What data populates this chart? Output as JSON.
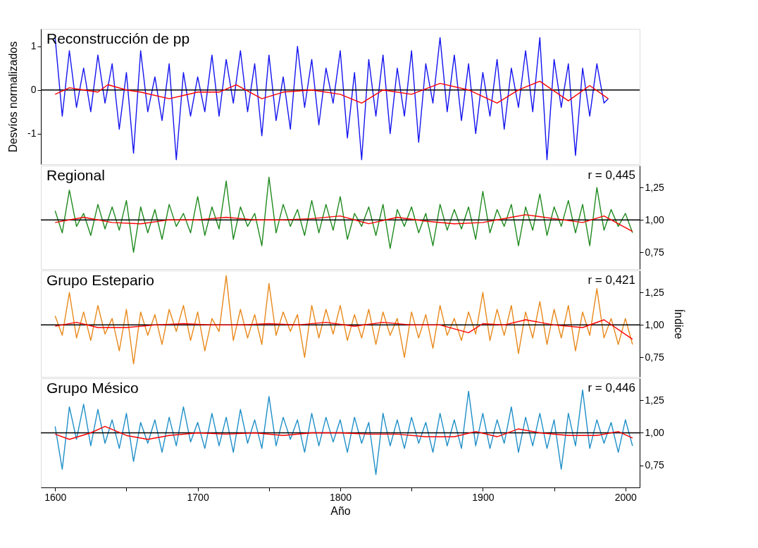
{
  "chart_data": [
    {
      "type": "line",
      "title": "Reconstrucción de pp",
      "ylabel": "Desvíos normalizados",
      "xlim": [
        1590,
        2010
      ],
      "ylim": [
        -1.7,
        1.4
      ],
      "yticks": [
        -1,
        0,
        1
      ],
      "grid": false,
      "tick_labels": "y",
      "ref_lines": [
        {
          "axis": "y",
          "value": 0,
          "color": "#000000"
        }
      ],
      "series": [
        {
          "color": "#1414f0",
          "x": [
            1600,
            1605,
            1610,
            1615,
            1620,
            1625,
            1630,
            1635,
            1640,
            1645,
            1650,
            1655,
            1660,
            1665,
            1670,
            1675,
            1680,
            1685,
            1690,
            1695,
            1700,
            1705,
            1710,
            1715,
            1720,
            1725,
            1730,
            1735,
            1740,
            1745,
            1750,
            1755,
            1760,
            1765,
            1770,
            1775,
            1780,
            1785,
            1790,
            1795,
            1800,
            1805,
            1810,
            1815,
            1820,
            1825,
            1830,
            1835,
            1840,
            1845,
            1850,
            1855,
            1860,
            1865,
            1870,
            1875,
            1880,
            1885,
            1890,
            1895,
            1900,
            1905,
            1910,
            1915,
            1920,
            1925,
            1930,
            1935,
            1940,
            1945,
            1950,
            1955,
            1960,
            1965,
            1970,
            1975,
            1980,
            1985,
            1988
          ],
          "values": [
            1.2,
            -0.6,
            0.9,
            -0.4,
            0.5,
            -0.5,
            0.8,
            -0.3,
            0.6,
            -0.9,
            0.4,
            -1.45,
            0.9,
            -0.5,
            0.3,
            -0.7,
            0.6,
            -1.6,
            0.4,
            -0.6,
            0.3,
            -0.5,
            0.8,
            -0.6,
            0.7,
            -0.3,
            0.9,
            -0.5,
            0.6,
            -1.05,
            0.8,
            -0.7,
            0.3,
            -0.9,
            1.0,
            -0.4,
            0.7,
            -0.8,
            0.5,
            -0.3,
            0.9,
            -1.1,
            0.4,
            -1.6,
            0.7,
            -0.6,
            0.8,
            -1.0,
            0.5,
            -0.6,
            0.9,
            -1.2,
            0.6,
            -0.3,
            1.2,
            -0.5,
            0.8,
            -0.7,
            0.6,
            -1.0,
            0.4,
            -0.6,
            0.7,
            -0.9,
            0.5,
            -0.4,
            0.9,
            -0.5,
            1.2,
            -1.6,
            0.7,
            -0.4,
            0.6,
            -1.5,
            0.5,
            -0.6,
            0.6,
            -0.3,
            -0.2
          ]
        },
        {
          "color": "#ff0000",
          "x": [
            1600,
            1610,
            1620,
            1630,
            1637,
            1650,
            1660,
            1680,
            1700,
            1715,
            1727,
            1745,
            1760,
            1780,
            1800,
            1815,
            1830,
            1850,
            1870,
            1890,
            1910,
            1925,
            1940,
            1960,
            1975,
            1988
          ],
          "values": [
            -0.1,
            0.05,
            0.0,
            -0.05,
            0.12,
            0.0,
            -0.05,
            -0.2,
            -0.05,
            -0.05,
            0.12,
            -0.2,
            -0.05,
            0.0,
            -0.1,
            -0.3,
            0.0,
            -0.1,
            0.15,
            0.0,
            -0.3,
            0.0,
            0.2,
            -0.25,
            0.1,
            -0.2
          ]
        }
      ]
    },
    {
      "type": "line",
      "title": "Regional",
      "annotations": [
        "r = 0,445"
      ],
      "xlim": [
        1590,
        2010
      ],
      "y2lim": [
        0.62,
        1.42
      ],
      "y2ticks": [
        {
          "value": 0.75,
          "label": "0,75"
        },
        {
          "value": 1.0,
          "label": "1,00"
        },
        {
          "value": 1.25,
          "label": "1,25"
        }
      ],
      "grid": false,
      "tick_labels": "y",
      "ref_lines": [
        {
          "axis": "y2",
          "value": 1.0,
          "color": "#000000"
        }
      ],
      "series": [
        {
          "color": "#1f8a1f",
          "axis": "y2",
          "x": [
            1600,
            1605,
            1610,
            1615,
            1620,
            1625,
            1630,
            1635,
            1640,
            1645,
            1650,
            1655,
            1660,
            1665,
            1670,
            1675,
            1680,
            1685,
            1690,
            1695,
            1700,
            1705,
            1710,
            1715,
            1720,
            1725,
            1730,
            1735,
            1740,
            1745,
            1750,
            1755,
            1760,
            1765,
            1770,
            1775,
            1780,
            1785,
            1790,
            1795,
            1800,
            1805,
            1810,
            1815,
            1820,
            1825,
            1830,
            1835,
            1840,
            1845,
            1850,
            1855,
            1860,
            1865,
            1870,
            1875,
            1880,
            1885,
            1890,
            1895,
            1900,
            1905,
            1910,
            1915,
            1920,
            1925,
            1930,
            1935,
            1940,
            1945,
            1950,
            1955,
            1960,
            1965,
            1970,
            1975,
            1980,
            1985,
            1990,
            1995,
            2000,
            2005
          ],
          "values": [
            1.07,
            0.9,
            1.23,
            0.95,
            1.05,
            0.88,
            1.12,
            0.93,
            1.1,
            0.92,
            1.15,
            0.75,
            1.1,
            0.9,
            1.08,
            0.85,
            1.12,
            0.95,
            1.05,
            0.9,
            1.18,
            0.88,
            1.1,
            0.93,
            1.3,
            0.85,
            1.1,
            0.95,
            1.05,
            0.8,
            1.33,
            0.9,
            1.12,
            0.95,
            1.08,
            0.88,
            1.15,
            0.9,
            1.12,
            0.92,
            1.18,
            0.85,
            1.05,
            0.95,
            1.1,
            0.88,
            1.12,
            0.78,
            1.08,
            0.95,
            1.1,
            0.9,
            1.05,
            0.8,
            1.12,
            0.92,
            1.08,
            0.93,
            1.1,
            0.85,
            1.22,
            0.9,
            1.08,
            0.95,
            1.12,
            0.8,
            1.1,
            0.92,
            1.2,
            0.88,
            1.1,
            0.95,
            1.15,
            0.9,
            1.12,
            0.8,
            1.25,
            0.92,
            1.08,
            0.95,
            1.05,
            0.9
          ]
        },
        {
          "color": "#ff0000",
          "axis": "y2",
          "x": [
            1600,
            1620,
            1640,
            1660,
            1680,
            1700,
            1720,
            1740,
            1760,
            1780,
            1800,
            1820,
            1840,
            1860,
            1880,
            1900,
            1920,
            1930,
            1950,
            1970,
            1985,
            2005
          ],
          "values": [
            0.98,
            1.02,
            0.98,
            0.97,
            1.0,
            1.0,
            1.02,
            1.0,
            1.0,
            1.01,
            1.03,
            0.97,
            1.02,
            0.99,
            0.97,
            0.98,
            1.02,
            1.04,
            1.01,
            0.98,
            1.03,
            0.91
          ]
        }
      ]
    },
    {
      "type": "line",
      "title": "Grupo Estepario",
      "annotations": [
        "r = 0,421"
      ],
      "y2label": "Índice",
      "xlim": [
        1590,
        2010
      ],
      "y2lim": [
        0.6,
        1.42
      ],
      "y2ticks": [
        {
          "value": 0.75,
          "label": "0,75"
        },
        {
          "value": 1.0,
          "label": "1,00"
        },
        {
          "value": 1.25,
          "label": "1,25"
        }
      ],
      "grid": false,
      "tick_labels": "y",
      "ref_lines": [
        {
          "axis": "y2",
          "value": 1.0,
          "color": "#000000"
        }
      ],
      "series": [
        {
          "color": "#e8891c",
          "axis": "y2",
          "x": [
            1600,
            1605,
            1610,
            1615,
            1620,
            1625,
            1630,
            1635,
            1640,
            1645,
            1650,
            1655,
            1660,
            1665,
            1670,
            1675,
            1680,
            1685,
            1690,
            1695,
            1700,
            1705,
            1710,
            1715,
            1720,
            1725,
            1730,
            1735,
            1740,
            1745,
            1750,
            1755,
            1760,
            1765,
            1770,
            1775,
            1780,
            1785,
            1790,
            1795,
            1800,
            1805,
            1810,
            1815,
            1820,
            1825,
            1830,
            1835,
            1840,
            1845,
            1850,
            1855,
            1860,
            1865,
            1870,
            1875,
            1880,
            1885,
            1890,
            1895,
            1900,
            1905,
            1910,
            1915,
            1920,
            1925,
            1930,
            1935,
            1940,
            1945,
            1950,
            1955,
            1960,
            1965,
            1970,
            1975,
            1980,
            1985,
            1990,
            1995,
            2000,
            2005
          ],
          "values": [
            1.07,
            0.92,
            1.25,
            0.9,
            1.1,
            0.88,
            1.15,
            0.93,
            1.05,
            0.8,
            1.12,
            0.7,
            1.1,
            0.92,
            1.08,
            0.85,
            1.12,
            0.95,
            1.15,
            0.88,
            1.1,
            0.8,
            1.05,
            0.95,
            1.38,
            0.88,
            1.12,
            0.9,
            1.08,
            0.85,
            1.32,
            0.92,
            1.1,
            0.95,
            1.08,
            0.75,
            1.15,
            0.9,
            1.12,
            0.93,
            1.15,
            0.88,
            1.08,
            0.9,
            1.12,
            0.85,
            1.1,
            0.92,
            1.05,
            0.75,
            1.1,
            0.9,
            1.08,
            0.82,
            1.15,
            0.92,
            1.05,
            0.88,
            1.1,
            0.93,
            1.25,
            0.88,
            1.12,
            0.92,
            1.15,
            0.78,
            1.1,
            0.9,
            1.18,
            0.85,
            1.12,
            0.9,
            1.15,
            0.8,
            1.1,
            0.92,
            1.28,
            0.9,
            1.05,
            0.85,
            1.05,
            0.85
          ]
        },
        {
          "color": "#ff0000",
          "axis": "y2",
          "x": [
            1600,
            1615,
            1630,
            1650,
            1670,
            1690,
            1710,
            1730,
            1750,
            1770,
            1790,
            1810,
            1830,
            1850,
            1870,
            1890,
            1900,
            1915,
            1930,
            1950,
            1970,
            1985,
            2005
          ],
          "values": [
            0.99,
            1.02,
            0.98,
            0.98,
            1.0,
            1.01,
            1.0,
            1.0,
            1.01,
            1.0,
            1.02,
            0.99,
            1.02,
            1.0,
            1.0,
            0.94,
            1.01,
            1.0,
            1.04,
            1.0,
            0.98,
            1.04,
            0.89
          ]
        }
      ]
    },
    {
      "type": "line",
      "title": "Grupo Mésico",
      "annotations": [
        "r = 0,446"
      ],
      "xlabel": "Año",
      "xlim": [
        1590,
        2010
      ],
      "xticks": [
        1600,
        {
          "value": 1650,
          "label": null
        },
        1700,
        {
          "value": 1750,
          "label": null
        },
        1800,
        {
          "value": 1850,
          "label": null
        },
        1900,
        {
          "value": 1950,
          "label": null
        },
        2000
      ],
      "y2lim": [
        0.58,
        1.42
      ],
      "y2ticks": [
        {
          "value": 0.75,
          "label": "0,75"
        },
        {
          "value": 1.0,
          "label": "1,00"
        },
        {
          "value": 1.25,
          "label": "1,25"
        }
      ],
      "grid": false,
      "ref_lines": [
        {
          "axis": "y2",
          "value": 1.0,
          "color": "#000000"
        }
      ],
      "series": [
        {
          "color": "#1f8fc8",
          "axis": "y2",
          "x": [
            1600,
            1605,
            1610,
            1615,
            1620,
            1625,
            1630,
            1635,
            1640,
            1645,
            1650,
            1655,
            1660,
            1665,
            1670,
            1675,
            1680,
            1685,
            1690,
            1695,
            1700,
            1705,
            1710,
            1715,
            1720,
            1725,
            1730,
            1735,
            1740,
            1745,
            1750,
            1755,
            1760,
            1765,
            1770,
            1775,
            1780,
            1785,
            1790,
            1795,
            1800,
            1805,
            1810,
            1815,
            1820,
            1825,
            1830,
            1835,
            1840,
            1845,
            1850,
            1855,
            1860,
            1865,
            1870,
            1875,
            1880,
            1885,
            1890,
            1895,
            1900,
            1905,
            1910,
            1915,
            1920,
            1925,
            1930,
            1935,
            1940,
            1945,
            1950,
            1955,
            1960,
            1965,
            1970,
            1975,
            1980,
            1985,
            1990,
            1995,
            2000,
            2005
          ],
          "values": [
            1.05,
            0.72,
            1.2,
            0.95,
            1.22,
            0.9,
            1.18,
            0.92,
            1.1,
            0.88,
            1.15,
            0.78,
            1.08,
            0.92,
            1.1,
            0.85,
            1.12,
            0.9,
            1.2,
            0.93,
            1.08,
            0.88,
            1.15,
            0.9,
            1.12,
            0.85,
            1.18,
            0.92,
            1.1,
            0.88,
            1.28,
            0.9,
            1.12,
            0.95,
            1.1,
            0.85,
            1.15,
            0.9,
            1.12,
            0.93,
            1.1,
            0.85,
            1.12,
            0.92,
            1.08,
            0.68,
            1.15,
            0.9,
            1.1,
            0.88,
            1.12,
            0.92,
            1.08,
            0.85,
            1.15,
            0.9,
            1.1,
            0.88,
            1.32,
            0.9,
            1.15,
            0.88,
            1.1,
            0.92,
            1.2,
            0.85,
            1.12,
            0.9,
            1.15,
            0.88,
            1.1,
            0.72,
            1.15,
            0.9,
            1.33,
            0.88,
            1.1,
            0.92,
            1.08,
            0.85,
            1.1,
            0.9
          ]
        },
        {
          "color": "#ff0000",
          "axis": "y2",
          "x": [
            1600,
            1610,
            1625,
            1635,
            1650,
            1665,
            1680,
            1700,
            1720,
            1740,
            1760,
            1780,
            1800,
            1820,
            1840,
            1860,
            1880,
            1895,
            1910,
            1925,
            1940,
            1960,
            1980,
            1995,
            2005
          ],
          "values": [
            0.99,
            0.95,
            1.0,
            1.05,
            0.98,
            0.95,
            0.98,
            1.0,
            0.99,
            1.0,
            0.98,
            1.0,
            1.0,
            0.99,
            0.99,
            0.97,
            0.97,
            1.01,
            0.97,
            1.03,
            1.0,
            0.98,
            0.98,
            1.01,
            0.96
          ]
        }
      ]
    }
  ]
}
